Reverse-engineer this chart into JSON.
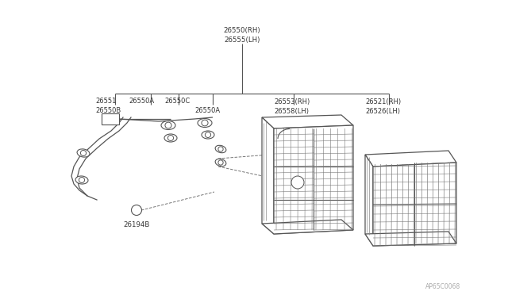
{
  "bg_color": "#ffffff",
  "line_color": "#555555",
  "text_color": "#333333",
  "watermark": "AP65C0068",
  "figsize": [
    6.4,
    3.72
  ],
  "dpi": 100,
  "labels": {
    "26550_rh": "26550(RH)",
    "26555_lh": "26555(LH)",
    "26551": "26551",
    "26550A_1": "26550A",
    "26550B": "26550B",
    "26550C": "26550C",
    "26550A_2": "26550A",
    "26553_rh": "26553(RH)",
    "26558_lh": "26558(LH)",
    "26521_rh": "26521(RH)",
    "26526_lh": "26526(LH)",
    "26194B": "26194B"
  }
}
